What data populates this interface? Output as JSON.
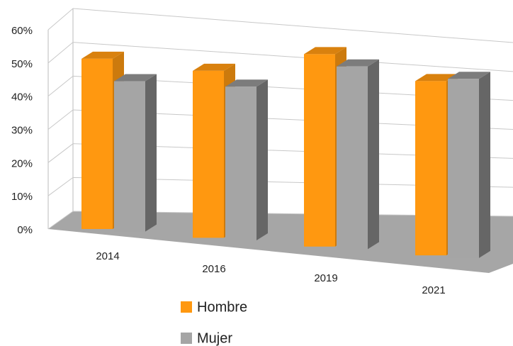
{
  "chart_data": {
    "type": "bar3d",
    "categories": [
      "2014",
      "2016",
      "2019",
      "2021"
    ],
    "series": [
      {
        "name": "Hombre",
        "color": "#ff9810",
        "values": [
          49,
          47,
          53,
          47
        ]
      },
      {
        "name": "Mujer",
        "color": "#a5a5a5",
        "values": [
          43,
          43,
          50,
          48
        ]
      }
    ],
    "ylim": [
      0,
      60
    ],
    "yticks": [
      {
        "value": 0,
        "label": "0%"
      },
      {
        "value": 10,
        "label": "10%"
      },
      {
        "value": 20,
        "label": "20%"
      },
      {
        "value": 30,
        "label": "30%"
      },
      {
        "value": 40,
        "label": "40%"
      },
      {
        "value": 50,
        "label": "50%"
      },
      {
        "value": 60,
        "label": "60%"
      }
    ],
    "grid": true
  }
}
